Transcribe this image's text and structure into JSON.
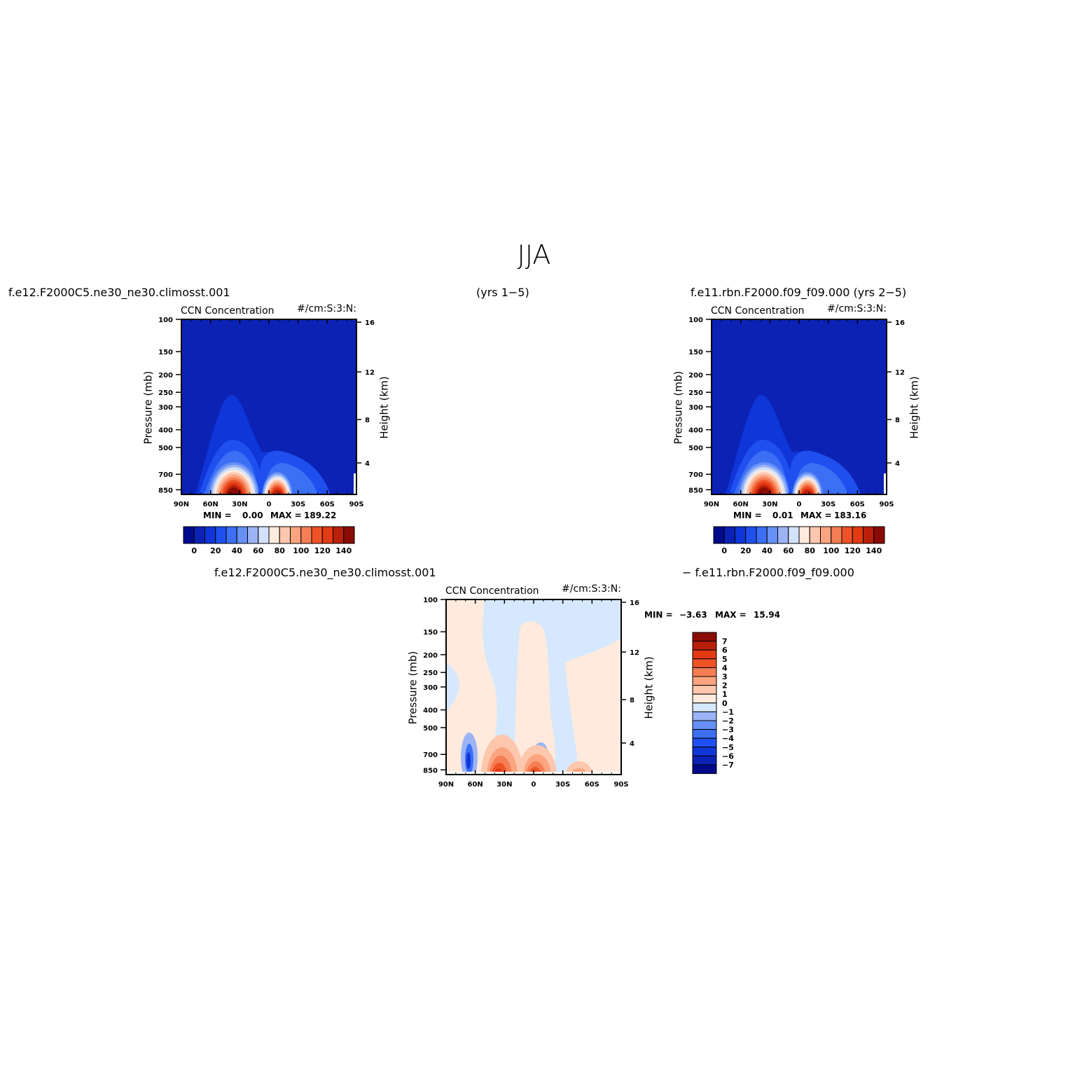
{
  "title": "JJA",
  "case_labels": {
    "case1": "f.e12.F2000C5.ne30_ne30.climosst.001",
    "years1": "(yrs 1−5)",
    "case2": "f.e11.rbn.F2000.f09_f09.000 (yrs 2−5)",
    "diff_left": "f.e12.F2000C5.ne30_ne30.climosst.001",
    "diff_right": "− f.e11.rbn.F2000.f09_f09.000"
  },
  "colors": {
    "abs_levels": [
      "#000a8c",
      "#0b22b4",
      "#0f36d8",
      "#1f50ef",
      "#3c6ff4",
      "#6690f5",
      "#9bb4f5",
      "#d3e2fb",
      "#ffeadd",
      "#fcc7ad",
      "#faa57f",
      "#f57e55",
      "#ee5328",
      "#e23a12",
      "#b91f0a",
      "#8a0c04"
    ],
    "diff_levels": [
      "#000a8c",
      "#0b22b4",
      "#0f36d8",
      "#1f50ef",
      "#3c6ff4",
      "#6690f5",
      "#9bb4f5",
      "#d6e8fd",
      "#ffeadd",
      "#fcc7ad",
      "#faa57f",
      "#f57e55",
      "#ee5328",
      "#e23a12",
      "#b91f0a",
      "#8a0c04"
    ]
  },
  "panels": [
    {
      "id": "case1",
      "variable": "CCN Concentration",
      "units": "#/cm:S:3:N:",
      "ylabel": "Pressure (mb)",
      "ylabel_right": "Height (km)",
      "min_label": "MIN =",
      "min_value": "0.00",
      "max_label": "MAX =",
      "max_value": "189.22"
    },
    {
      "id": "case2",
      "variable": "CCN Concentration",
      "units": "#/cm:S:3:N:",
      "ylabel": "Pressure (mb)",
      "ylabel_right": "Height (km)",
      "min_label": "MIN =",
      "min_value": "0.01",
      "max_label": "MAX =",
      "max_value": "183.16"
    },
    {
      "id": "diff",
      "variable": "CCN Concentration",
      "units": "#/cm:S:3:N:",
      "ylabel": "Pressure (mb)",
      "ylabel_right": "Height (km)",
      "min_label": "MIN =",
      "min_value": "−3.63",
      "max_label": "MAX =",
      "max_value": "15.94"
    }
  ],
  "chart_data": [
    {
      "type": "heatmap",
      "title": "CCN Concentration",
      "units": "#/cm:S:3:N:",
      "xlabel": "",
      "ylabel": "Pressure (mb)",
      "ylabel_right": "Height (km)",
      "x_ticks": [
        "90N",
        "60N",
        "30N",
        "0",
        "30S",
        "60S",
        "90S"
      ],
      "y_ticks": [
        100,
        150,
        200,
        250,
        300,
        400,
        500,
        700,
        850
      ],
      "y_ticks_right": [
        16,
        12,
        8,
        4
      ],
      "y_scale": "log",
      "ylim": [
        1000,
        100
      ],
      "colorbar_ticks": [
        "0",
        "20",
        "40",
        "60",
        "80",
        "100",
        "120",
        "140"
      ],
      "colorbar_orientation": "horizontal",
      "min": 0.0,
      "max": 189.22
    },
    {
      "type": "heatmap",
      "title": "CCN Concentration",
      "units": "#/cm:S:3:N:",
      "xlabel": "",
      "ylabel": "Pressure (mb)",
      "ylabel_right": "Height (km)",
      "x_ticks": [
        "90N",
        "60N",
        "30N",
        "0",
        "30S",
        "60S",
        "90S"
      ],
      "y_ticks": [
        100,
        150,
        200,
        250,
        300,
        400,
        500,
        700,
        850
      ],
      "y_ticks_right": [
        16,
        12,
        8,
        4
      ],
      "y_scale": "log",
      "ylim": [
        1000,
        100
      ],
      "colorbar_ticks": [
        "0",
        "20",
        "40",
        "60",
        "80",
        "100",
        "120",
        "140"
      ],
      "colorbar_orientation": "horizontal",
      "min": 0.01,
      "max": 183.16
    },
    {
      "type": "heatmap",
      "title": "CCN Concentration",
      "units": "#/cm:S:3:N:",
      "xlabel": "",
      "ylabel": "Pressure (mb)",
      "ylabel_right": "Height (km)",
      "x_ticks": [
        "90N",
        "60N",
        "30N",
        "0",
        "30S",
        "60S",
        "90S"
      ],
      "y_ticks": [
        100,
        150,
        200,
        250,
        300,
        400,
        500,
        700,
        850
      ],
      "y_ticks_right": [
        16,
        12,
        8,
        4
      ],
      "y_scale": "log",
      "ylim": [
        1000,
        100
      ],
      "colorbar_ticks": [
        "7",
        "6",
        "5",
        "4",
        "3",
        "2",
        "1",
        "0",
        "−1",
        "−2",
        "−3",
        "−4",
        "−5",
        "−6",
        "−7"
      ],
      "colorbar_orientation": "vertical",
      "min": -3.63,
      "max": 15.94
    }
  ]
}
